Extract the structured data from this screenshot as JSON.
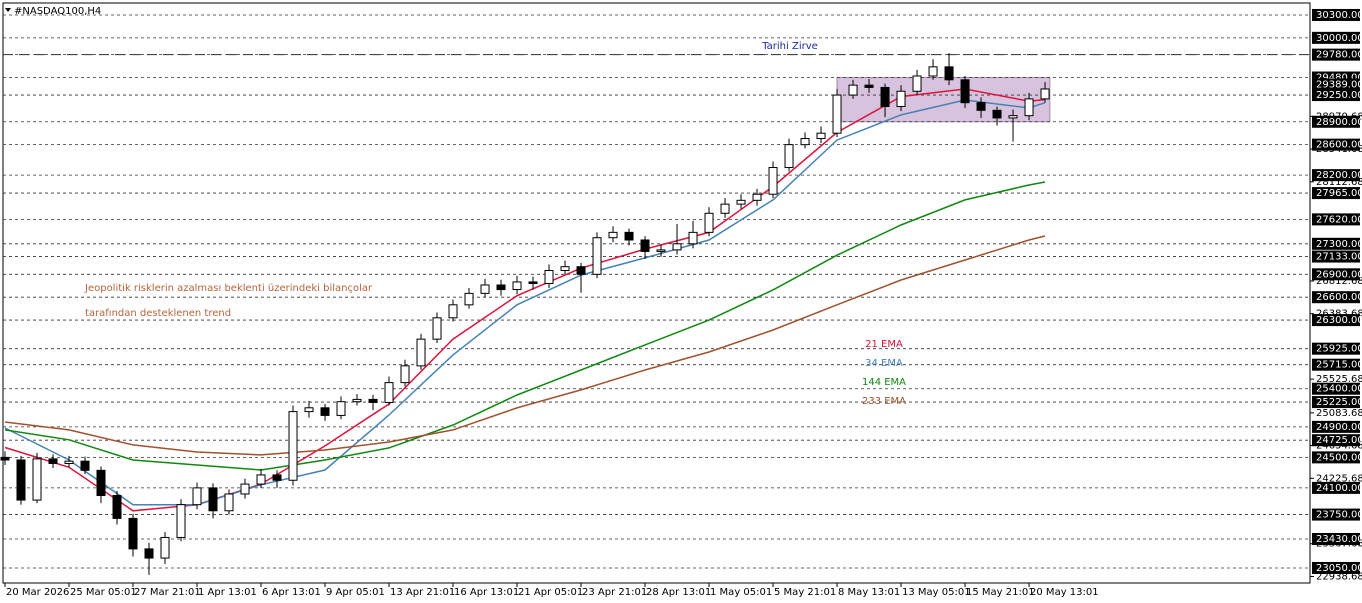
{
  "chart_data": {
    "type": "candlestick",
    "title": "#NASDAQ100,H4",
    "xlim": [
      -0.125,
      81.56
    ],
    "ylim": [
      22853,
      30457
    ],
    "xticks": [
      {
        "value": 0,
        "label": "20 Mar 2026"
      },
      {
        "value": 4,
        "label": "25 Mar 05:01"
      },
      {
        "value": 8,
        "label": "27 Mar 21:01"
      },
      {
        "value": 12,
        "label": "1 Apr 13:01"
      },
      {
        "value": 16,
        "label": "6 Apr 13:01"
      },
      {
        "value": 20,
        "label": "9 Apr 05:01"
      },
      {
        "value": 24,
        "label": "13 Apr 21:01"
      },
      {
        "value": 28,
        "label": "16 Apr 13:01"
      },
      {
        "value": 32,
        "label": "21 Apr 05:01"
      },
      {
        "value": 36,
        "label": "23 Apr 21:01"
      },
      {
        "value": 40,
        "label": "28 Apr 13:01"
      },
      {
        "value": 44,
        "label": "1 May 05:01"
      },
      {
        "value": 48,
        "label": "5 May 21:01"
      },
      {
        "value": 52,
        "label": "8 May 13:01"
      },
      {
        "value": 56,
        "label": "13 May 05:01"
      },
      {
        "value": 60,
        "label": "15 May 21:01"
      },
      {
        "value": 64,
        "label": "20 May 13:01"
      }
    ],
    "yticks": [
      {
        "value": 28970.68,
        "label": "28970.68"
      },
      {
        "value": 28541.68,
        "label": "28541.68"
      },
      {
        "value": 28112.68,
        "label": "28112.68"
      },
      {
        "value": 26812.68,
        "label": "26812.68"
      },
      {
        "value": 26383.68,
        "label": "26383.68"
      },
      {
        "value": 25525.68,
        "label": "25525.68"
      },
      {
        "value": 25083.68,
        "label": "25083.68"
      },
      {
        "value": 24654.68,
        "label": "24654.68"
      },
      {
        "value": 24225.68,
        "label": "24225.68"
      },
      {
        "value": 23367.68,
        "label": "23367.68"
      },
      {
        "value": 22938.68,
        "label": "22938.68"
      }
    ],
    "levels": [
      {
        "value": 30300,
        "label": "30300.00"
      },
      {
        "value": 30000,
        "label": "30000.00"
      },
      {
        "value": 29780,
        "label": "29780.00"
      },
      {
        "value": 29480,
        "label": "29480.00"
      },
      {
        "value": 29250,
        "label": "29250.00"
      },
      {
        "value": 28900,
        "label": "28900.00"
      },
      {
        "value": 28600,
        "label": "28600.00"
      },
      {
        "value": 28200,
        "label": "28200.00"
      },
      {
        "value": 27965,
        "label": "27965.00"
      },
      {
        "value": 27620,
        "label": "27620.00"
      },
      {
        "value": 27300,
        "label": "27300.00"
      },
      {
        "value": 27133,
        "label": "27133.00"
      },
      {
        "value": 26900,
        "label": "26900.00"
      },
      {
        "value": 26600,
        "label": "26600.00"
      },
      {
        "value": 26300,
        "label": "26300.00"
      },
      {
        "value": 25925,
        "label": "25925.00"
      },
      {
        "value": 25715,
        "label": "25715.00"
      },
      {
        "value": 25400,
        "label": "25400.00"
      },
      {
        "value": 25225,
        "label": "25225.00"
      },
      {
        "value": 24900,
        "label": "24900.00"
      },
      {
        "value": 24725,
        "label": "24725.00"
      },
      {
        "value": 24500,
        "label": "24500.00"
      },
      {
        "value": 24100,
        "label": "24100.00"
      },
      {
        "value": 23750,
        "label": "23750.00"
      },
      {
        "value": 23430,
        "label": "23430.00"
      },
      {
        "value": 23050,
        "label": "23050.00"
      }
    ],
    "last_price": {
      "value": 29389,
      "label": "29389.00"
    },
    "peak": {
      "value": 29780,
      "text": "Tarihi Zirve"
    },
    "zone": {
      "x": [
        52,
        65.3
      ],
      "ymin": 28900,
      "ymax": 29480,
      "color": "#d8c3de"
    },
    "notes": [
      "Jeopolitik risklerin azalması beklenti üzerindeki bilançolar",
      "tarafından desteklenen trend"
    ],
    "ohlc": {
      "open": [
        24500,
        24466,
        23940,
        24480,
        24420,
        24450,
        24330,
        24000,
        23700,
        23300,
        23180,
        23450,
        23880,
        24100,
        23800,
        24020,
        24150,
        24270,
        24200,
        25100,
        25150,
        25050,
        25230,
        25260,
        25220,
        25480,
        25700,
        26050,
        26330,
        26500,
        26650,
        26760,
        26700,
        26800,
        26780,
        26950,
        27000,
        26900,
        27380,
        27450,
        27350,
        27200,
        27220,
        27300,
        27450,
        27700,
        27820,
        27870,
        27950,
        28300,
        28600,
        28680,
        28750,
        29250,
        29380,
        29350,
        29100,
        29300,
        29500,
        29620,
        29450,
        29150,
        29050,
        28950,
        28980,
        29200
      ],
      "high": [
        24580,
        24520,
        24560,
        24540,
        24520,
        24510,
        24380,
        24060,
        23760,
        23380,
        23520,
        23950,
        24170,
        24160,
        24080,
        24220,
        24350,
        24330,
        25180,
        25240,
        25200,
        25300,
        25330,
        25320,
        25560,
        25780,
        26120,
        26400,
        26570,
        26720,
        26840,
        26830,
        26880,
        26870,
        27030,
        27080,
        27050,
        27450,
        27530,
        27500,
        27400,
        27290,
        27560,
        27600,
        27780,
        27900,
        27950,
        28020,
        28380,
        28680,
        28760,
        28840,
        29330,
        29450,
        29460,
        29400,
        29380,
        29580,
        29720,
        29800,
        29500,
        29220,
        29100,
        29060,
        29280,
        29420
      ],
      "low": [
        24400,
        23880,
        23900,
        24360,
        24370,
        24280,
        23900,
        23620,
        23200,
        22960,
        23100,
        23400,
        23820,
        23700,
        23750,
        23960,
        24100,
        24100,
        24130,
        25020,
        24980,
        25000,
        25180,
        25120,
        25180,
        25430,
        25650,
        26000,
        26280,
        26450,
        26600,
        26620,
        26640,
        26700,
        26720,
        26900,
        26660,
        26850,
        27320,
        27280,
        27100,
        27130,
        27160,
        27240,
        27400,
        27640,
        27760,
        27800,
        27900,
        28250,
        28550,
        28620,
        28700,
        29200,
        29280,
        28960,
        29040,
        29250,
        29450,
        29380,
        29080,
        28950,
        28850,
        28640,
        28920,
        29150
      ],
      "close": [
        24466,
        23940,
        24480,
        24420,
        24450,
        24330,
        24000,
        23700,
        23300,
        23180,
        23450,
        23880,
        24100,
        23800,
        24020,
        24150,
        24270,
        24200,
        25100,
        25150,
        25050,
        25230,
        25260,
        25220,
        25480,
        25700,
        26050,
        26330,
        26500,
        26650,
        26760,
        26700,
        26800,
        26780,
        26950,
        27000,
        26900,
        27380,
        27450,
        27350,
        27200,
        27220,
        27300,
        27450,
        27700,
        27820,
        27870,
        27950,
        28300,
        28600,
        28680,
        28750,
        29250,
        29380,
        29350,
        29100,
        29300,
        29500,
        29620,
        29450,
        29150,
        29050,
        28950,
        28980,
        29200,
        29330
      ]
    },
    "series": [
      {
        "name": "21 EMA",
        "color": "#dc143c",
        "x": [
          0,
          4,
          8,
          12,
          16,
          20,
          24,
          28,
          32,
          36,
          40,
          44,
          48,
          52,
          56,
          60,
          64,
          65
        ],
        "values": [
          24630,
          24370,
          23800,
          23880,
          24150,
          24650,
          25200,
          26050,
          26620,
          26980,
          27230,
          27450,
          28050,
          28760,
          29230,
          29330,
          29170,
          29190
        ]
      },
      {
        "name": "34 EMA",
        "color": "#4682b4",
        "x": [
          0,
          4,
          8,
          12,
          16,
          20,
          24,
          28,
          32,
          36,
          40,
          44,
          48,
          52,
          56,
          60,
          64,
          65
        ],
        "values": [
          24885,
          24466,
          23880,
          23880,
          24140,
          24335,
          25055,
          25843,
          26500,
          26890,
          27115,
          27350,
          27875,
          28660,
          28990,
          29185,
          29080,
          29150
        ]
      },
      {
        "name": "144 EMA",
        "color": "#118811",
        "x": [
          0,
          4,
          8,
          12,
          16,
          20,
          24,
          28,
          32,
          36,
          40,
          44,
          48,
          52,
          56,
          60,
          64,
          65
        ],
        "values": [
          24860,
          24730,
          24466,
          24400,
          24335,
          24466,
          24624,
          24925,
          25318,
          25646,
          25974,
          26300,
          26695,
          27150,
          27547,
          27875,
          28071,
          28110
        ]
      },
      {
        "name": "233 EMA",
        "color": "#a0522d",
        "x": [
          0,
          4,
          8,
          12,
          16,
          20,
          24,
          28,
          32,
          36,
          40,
          44,
          48,
          52,
          56,
          60,
          64,
          65
        ],
        "values": [
          24964,
          24860,
          24663,
          24570,
          24532,
          24597,
          24702,
          24860,
          25148,
          25384,
          25646,
          25882,
          26170,
          26500,
          26825,
          27087,
          27350,
          27402
        ]
      }
    ]
  }
}
